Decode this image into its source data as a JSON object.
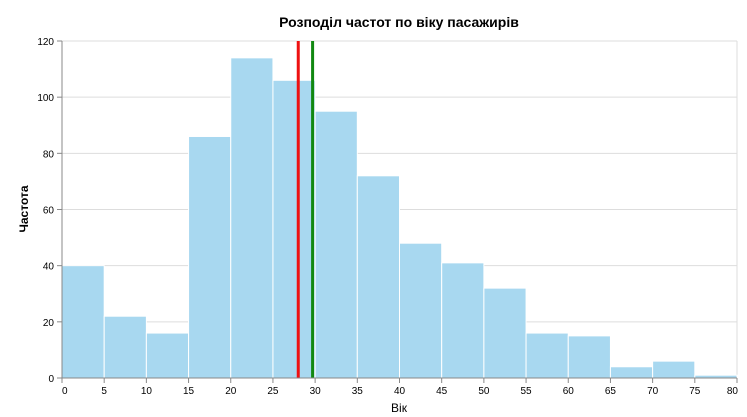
{
  "chart_data": {
    "type": "bar",
    "title": "Розподіл частот по віку пасажирів",
    "xlabel": "Вік",
    "ylabel": "Частота",
    "bin_edges": [
      0,
      5,
      10,
      15,
      20,
      25,
      30,
      35,
      40,
      45,
      50,
      55,
      60,
      65,
      70,
      75,
      80
    ],
    "values": [
      40,
      22,
      16,
      86,
      114,
      106,
      95,
      72,
      48,
      41,
      32,
      16,
      15,
      4,
      6,
      1
    ],
    "xlim": [
      0,
      80
    ],
    "ylim": [
      0,
      120
    ],
    "x_ticks": [
      0,
      5,
      10,
      15,
      20,
      25,
      30,
      35,
      40,
      45,
      50,
      55,
      60,
      65,
      70,
      75,
      80
    ],
    "y_ticks": [
      0,
      20,
      40,
      60,
      80,
      100,
      120
    ],
    "grid": true,
    "reference_lines": [
      {
        "x": 28.0,
        "color": "#ee1111"
      },
      {
        "x": 29.7,
        "color": "#118811"
      }
    ],
    "bar_color": "#a8d8f0"
  }
}
